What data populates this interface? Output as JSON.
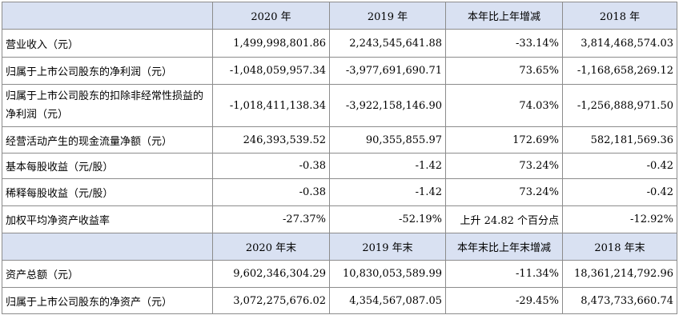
{
  "header_annual": [
    "",
    "2020 年",
    "2019 年",
    "本年比上年增减",
    "2018 年"
  ],
  "annual_rows": [
    {
      "label": "营业收入（元）",
      "v2020": "1,499,998,801.86",
      "v2019": "2,243,545,641.88",
      "change": "-33.14%",
      "v2018": "3,814,468,574.03"
    },
    {
      "label": "归属于上市公司股东的净利润（元）",
      "v2020": "-1,048,059,957.34",
      "v2019": "-3,977,691,690.71",
      "change": "73.65%",
      "v2018": "-1,168,658,269.12"
    },
    {
      "label": "归属于上市公司股东的扣除非经常性损益的净利润（元）",
      "v2020": "-1,018,411,138.34",
      "v2019": "-3,922,158,146.90",
      "change": "74.03%",
      "v2018": "-1,256,888,971.50"
    },
    {
      "label": "经营活动产生的现金流量净额（元）",
      "v2020": "246,393,539.52",
      "v2019": "90,355,855.97",
      "change": "172.69%",
      "v2018": "582,181,569.36"
    },
    {
      "label": "基本每股收益（元/股）",
      "v2020": "-0.38",
      "v2019": "-1.42",
      "change": "73.24%",
      "v2018": "-0.42"
    },
    {
      "label": "稀释每股收益（元/股）",
      "v2020": "-0.38",
      "v2019": "-1.42",
      "change": "73.24%",
      "v2018": "-0.42"
    },
    {
      "label": "加权平均净资产收益率",
      "v2020": "-27.37%",
      "v2019": "-52.19%",
      "change": "上升 24.82 个百分点",
      "v2018": "-12.92%"
    }
  ],
  "header_yearend": [
    "",
    "2020 年末",
    "2019 年末",
    "本年末比上年末增减",
    "2018 年末"
  ],
  "yearend_rows": [
    {
      "label": "资产总额（元）",
      "v2020": "9,602,346,304.29",
      "v2019": "10,830,053,589.99",
      "change": "-11.34%",
      "v2018": "18,361,214,792.96"
    },
    {
      "label": "归属于上市公司股东的净资产（元）",
      "v2020": "3,072,275,676.02",
      "v2019": "4,354,567,087.05",
      "change": "-29.45%",
      "v2018": "8,473,733,660.74"
    }
  ]
}
